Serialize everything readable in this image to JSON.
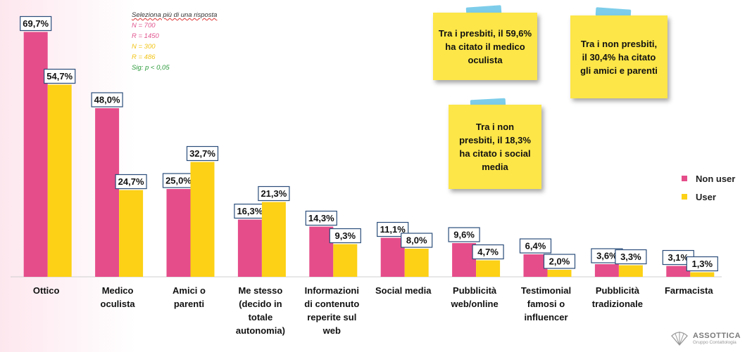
{
  "notes": {
    "question": "Seleziona più di una risposta",
    "samples": [
      {
        "text": "N = 700",
        "color": "#e0558e"
      },
      {
        "text": "R = 1450",
        "color": "#e0558e"
      },
      {
        "text": "N = 300",
        "color": "#f2c416"
      },
      {
        "text": "R = 486",
        "color": "#f2c416"
      }
    ],
    "sig": {
      "text": "Sig: p < 0,05",
      "color": "#2a9a3a"
    }
  },
  "stickies": [
    {
      "text": "Tra i presbiti, il 59,6% ha citato il medico oculista"
    },
    {
      "text": "Tra i non presbiti, il 30,4% ha citato gli amici e parenti"
    },
    {
      "text": "Tra i non presbiti, il 18,3% ha citato i social media"
    }
  ],
  "legend": {
    "items": [
      {
        "label": "Non user",
        "color": "#e54d8a"
      },
      {
        "label": "User",
        "color": "#fcd116"
      }
    ]
  },
  "logo": {
    "name": "ASSOTTICA",
    "sub": "Gruppo Contattologia"
  },
  "chart_data": {
    "type": "bar",
    "categories": [
      [
        "Ottico"
      ],
      [
        "Medico",
        "oculista"
      ],
      [
        "Amici o",
        "parenti"
      ],
      [
        "Me stesso",
        "(decido in",
        "totale",
        "autonomia)"
      ],
      [
        "Informazioni",
        "di contenuto",
        "reperite sul",
        "web"
      ],
      [
        "Social media"
      ],
      [
        "Pubblicità",
        "web/online"
      ],
      [
        "Testimonial",
        "famosi o",
        "influencer"
      ],
      [
        "Pubblicità",
        "tradizionale"
      ],
      [
        "Farmacista"
      ]
    ],
    "series": [
      {
        "name": "Non user",
        "color": "#e54d8a",
        "values": [
          69.7,
          48.0,
          25.0,
          16.3,
          14.3,
          11.1,
          9.6,
          6.4,
          3.6,
          3.1
        ],
        "labels": [
          "69,7%",
          "48,0%",
          "25,0%",
          "16,3%",
          "14,3%",
          "11,1%",
          "9,6%",
          "6,4%",
          "3,6%",
          "3,1%"
        ]
      },
      {
        "name": "User",
        "color": "#fcd116",
        "values": [
          54.7,
          24.7,
          32.7,
          21.3,
          9.3,
          8.0,
          4.7,
          2.0,
          3.3,
          1.3
        ],
        "labels": [
          "54,7%",
          "24,7%",
          "32,7%",
          "21,3%",
          "9,3%",
          "8,0%",
          "4,7%",
          "2,0%",
          "3,3%",
          "1,3%"
        ]
      }
    ],
    "ylim": [
      0,
      80
    ],
    "grid": false,
    "legend_position": "right"
  }
}
